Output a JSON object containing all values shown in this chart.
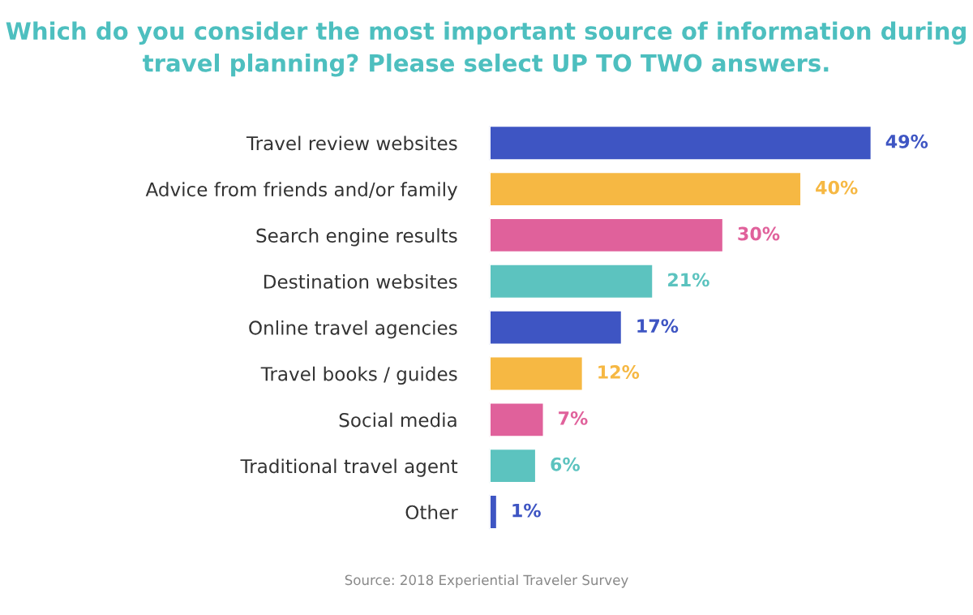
{
  "chart_data": {
    "type": "bar",
    "orientation": "horizontal",
    "title": "Which do you consider the most important source of information during\ntravel planning? Please select UP TO TWO answers.",
    "categories": [
      "Travel review websites",
      "Advice from friends and/or family",
      "Search engine results",
      "Destination websites",
      "Online travel agencies",
      "Travel books / guides",
      "Social media",
      "Traditional travel agent",
      "Other"
    ],
    "values": [
      49,
      40,
      30,
      21,
      17,
      12,
      7,
      6,
      1
    ],
    "value_labels": [
      "49%",
      "40%",
      "30%",
      "21%",
      "17%",
      "12%",
      "7%",
      "6%",
      "1%"
    ],
    "colors": [
      "#3e55c3",
      "#f6b843",
      "#e0619b",
      "#5cc3bf",
      "#3e55c3",
      "#f6b843",
      "#e0619b",
      "#5cc3bf",
      "#3e55c3"
    ],
    "annotations": [
      "Source: 2018 Experiential Traveler Survey"
    ],
    "grid": false,
    "legend": false
  }
}
